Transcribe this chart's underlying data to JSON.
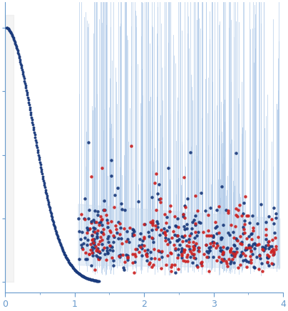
{
  "title": "",
  "xlabel": "",
  "ylabel": "",
  "xlim": [
    0,
    4.0
  ],
  "bg_color": "#ffffff",
  "blue_dot_color": "#1a3a7c",
  "red_dot_color": "#cc2222",
  "error_bar_color": "#adc8e8",
  "fill_color": "#c8daee",
  "axis_color": "#6699cc",
  "tick_color": "#6699cc",
  "figsize": [
    4.04,
    4.37
  ],
  "dpi": 100
}
